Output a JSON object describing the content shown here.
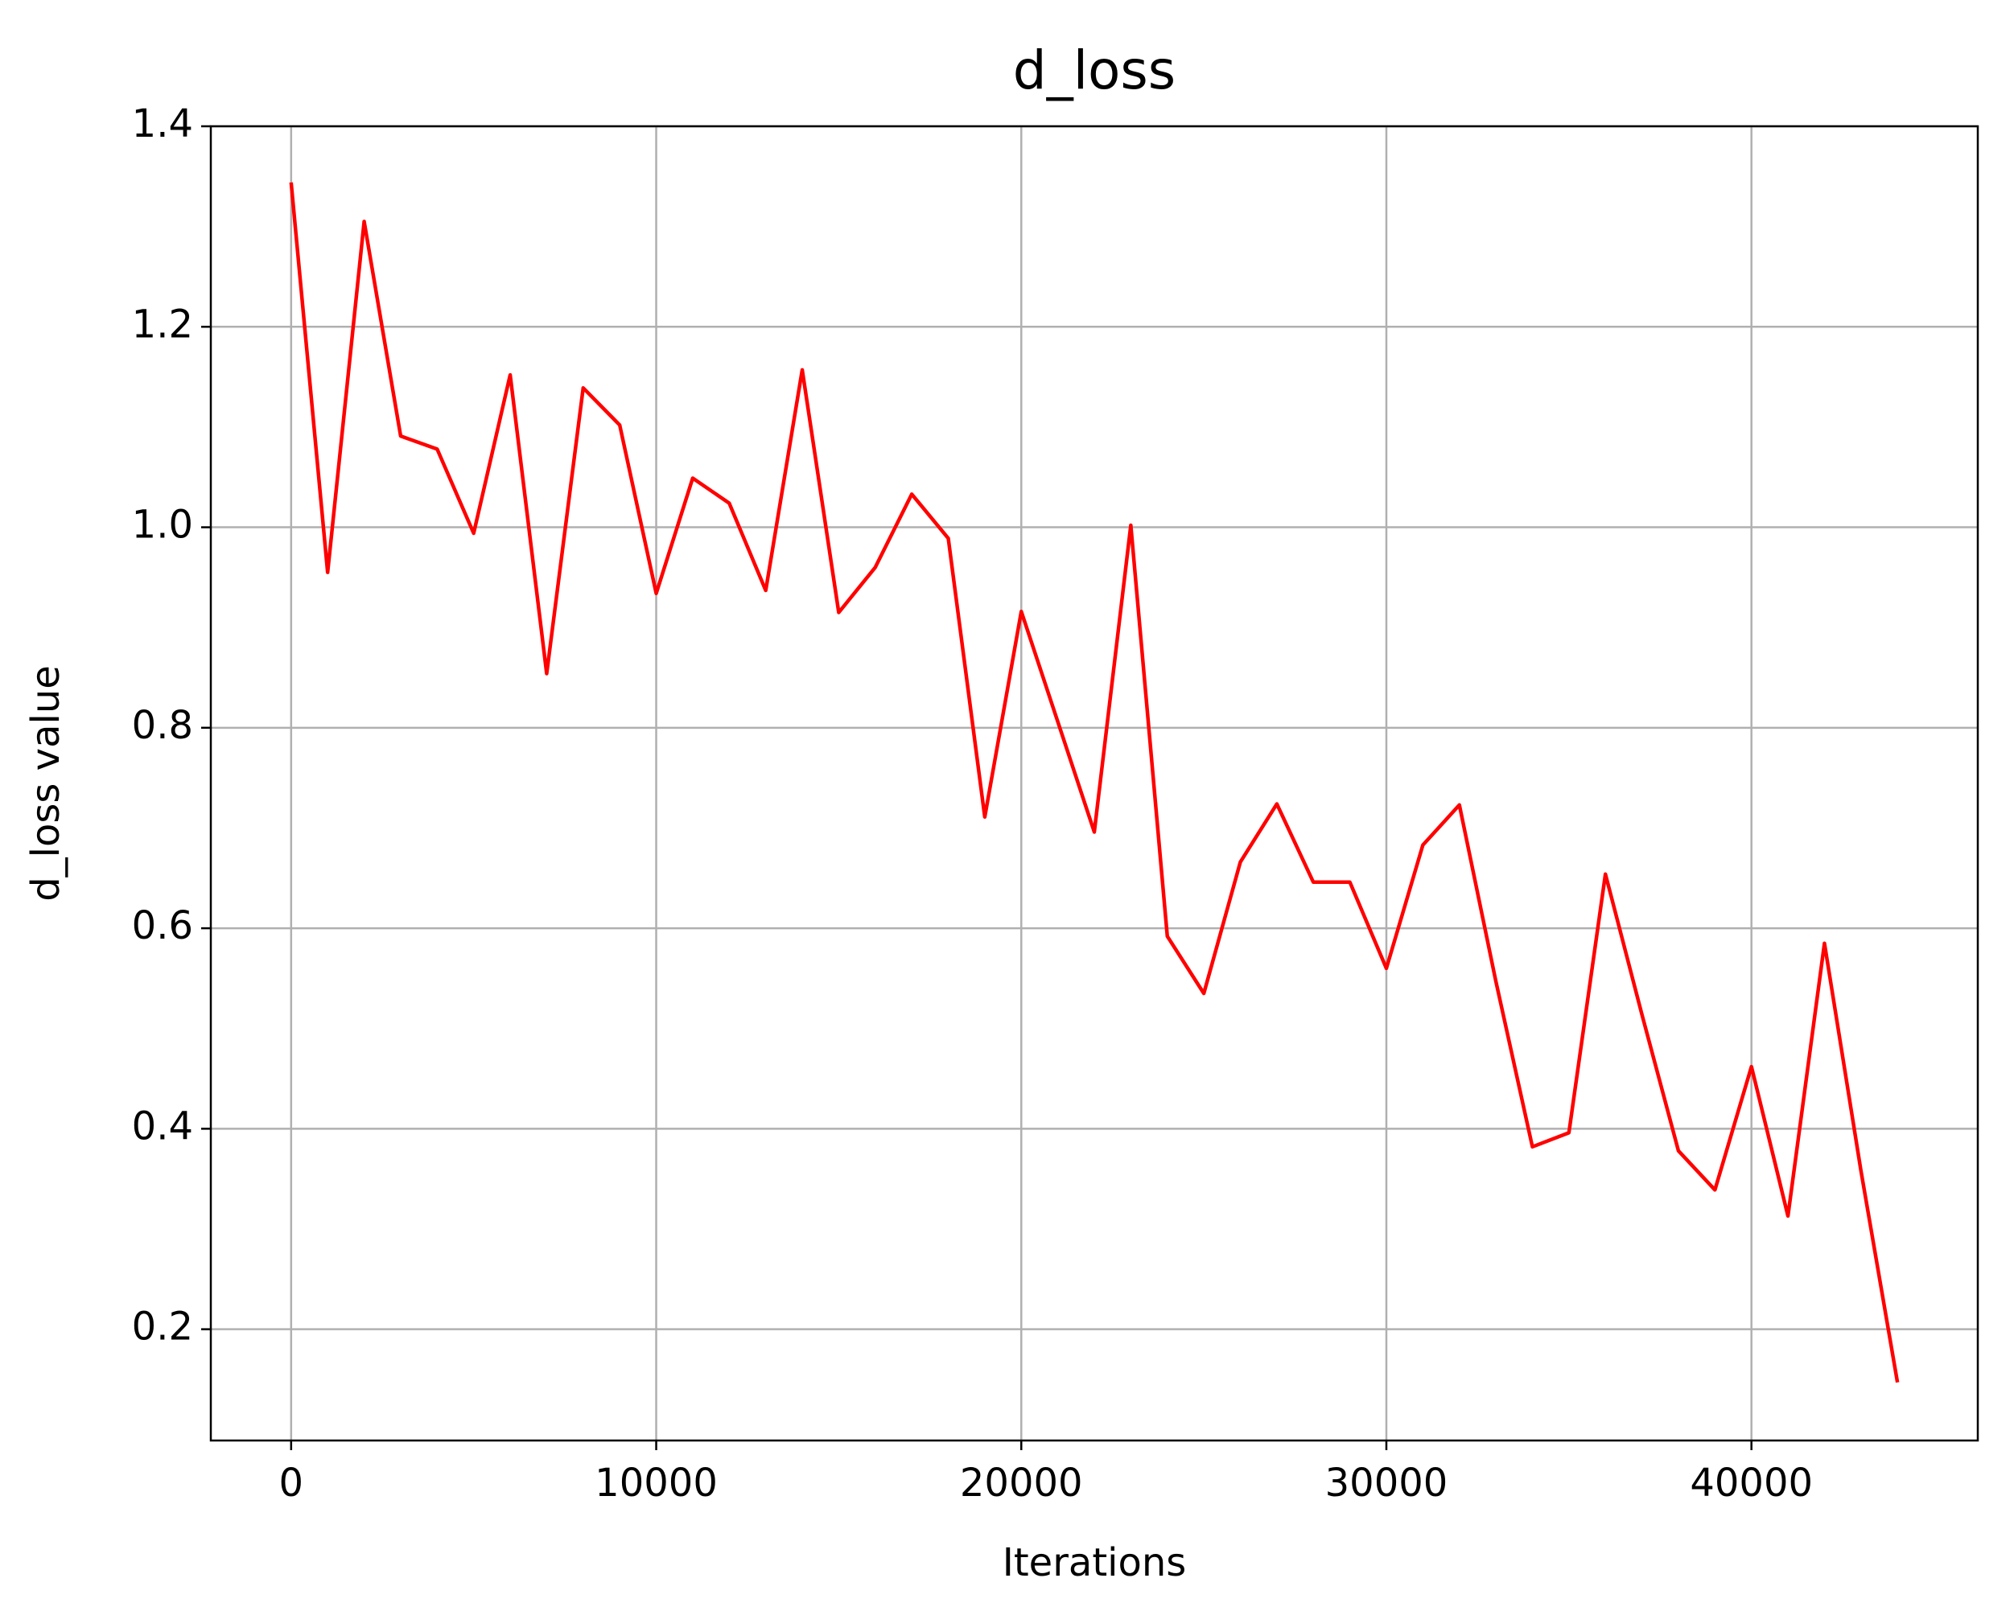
{
  "chart_data": {
    "type": "line",
    "title": "d_loss",
    "x_label": "Iterations",
    "y_label": "d_loss value",
    "x": [
      0,
      1000,
      2000,
      3000,
      4000,
      5000,
      6000,
      7000,
      8000,
      9000,
      10000,
      11000,
      12000,
      13000,
      14000,
      15000,
      16000,
      17000,
      18000,
      19000,
      20000,
      21000,
      22000,
      23000,
      24000,
      25000,
      26000,
      27000,
      28000,
      29000,
      30000,
      31000,
      32000,
      33000,
      34000,
      35000,
      36000,
      37000,
      38000,
      39000,
      40000,
      41000,
      42000,
      43000,
      44000
    ],
    "series": [
      {
        "name": "d_loss",
        "color": "#ff0000",
        "values": [
          1.344,
          0.955,
          1.305,
          1.091,
          1.078,
          0.994,
          1.152,
          0.854,
          1.139,
          1.102,
          0.934,
          1.049,
          1.024,
          0.937,
          1.157,
          0.915,
          0.96,
          1.033,
          0.989,
          0.711,
          0.916,
          0.806,
          0.696,
          1.002,
          0.592,
          0.535,
          0.666,
          0.724,
          0.646,
          0.646,
          0.56,
          0.683,
          0.723,
          0.547,
          0.382,
          0.396,
          0.654,
          0.514,
          0.378,
          0.339,
          0.462,
          0.313,
          0.585,
          0.358,
          0.147
        ]
      }
    ],
    "xlim": [
      -2200,
      46200
    ],
    "ylim": [
      0.089,
      1.4
    ],
    "xticks": [
      0,
      10000,
      20000,
      30000,
      40000
    ],
    "yticks": [
      0.2,
      0.4,
      0.6,
      0.8,
      1.0,
      1.2,
      1.4
    ],
    "grid": true
  }
}
